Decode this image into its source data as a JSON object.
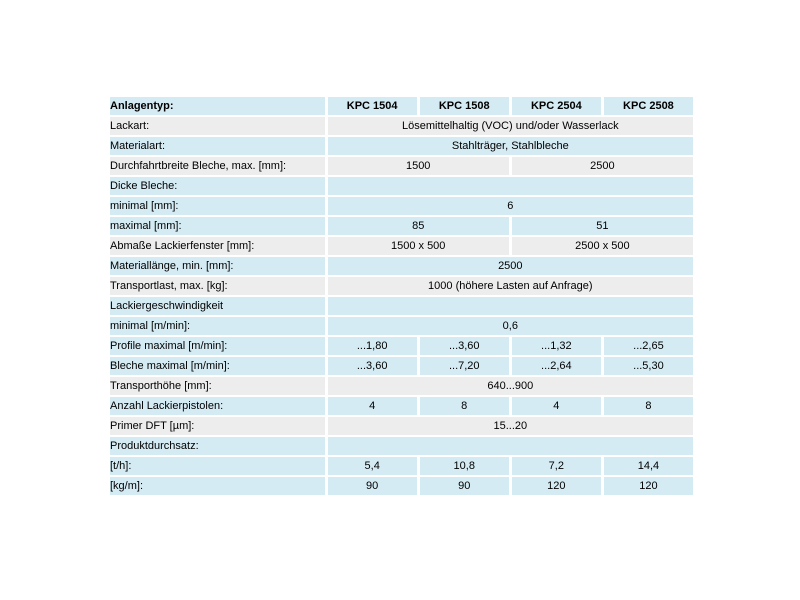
{
  "page": {
    "background": "#ffffff"
  },
  "table": {
    "colors": {
      "row_blue": "#d5ebf3",
      "row_gray": "#ededed",
      "text": "#000000",
      "separator": "#ffffff"
    },
    "header": {
      "label": "Anlagentyp:",
      "columns": [
        "KPC 1504",
        "KPC 1508",
        "KPC 2504",
        "KPC 2508"
      ]
    },
    "rows": [
      {
        "label": "Lackart:",
        "shade": "gray",
        "cells": [
          {
            "text": "Lösemittelhaltig (VOC) und/oder Wasserlack",
            "span": 4
          }
        ]
      },
      {
        "label": "Materialart:",
        "shade": "blue",
        "cells": [
          {
            "text": "Stahlträger, Stahlbleche",
            "span": 4
          }
        ]
      },
      {
        "label": "Durchfahrtbreite Bleche, max. [mm]:",
        "shade": "gray",
        "cells": [
          {
            "text": "1500",
            "span": 2
          },
          {
            "text": "2500",
            "span": 2
          }
        ]
      },
      {
        "label": "Dicke Bleche:",
        "shade": "blue",
        "cells": [
          {
            "text": "",
            "span": 4
          }
        ]
      },
      {
        "label": "minimal [mm]:",
        "shade": "blue",
        "cells": [
          {
            "text": "6",
            "span": 4
          }
        ]
      },
      {
        "label": "maximal [mm]:",
        "shade": "blue",
        "cells": [
          {
            "text": "85",
            "span": 2
          },
          {
            "text": "51",
            "span": 2
          }
        ]
      },
      {
        "label": "Abmaße Lackierfenster [mm]:",
        "shade": "gray",
        "cells": [
          {
            "text": "1500 x 500",
            "span": 2
          },
          {
            "text": "2500 x 500",
            "span": 2
          }
        ]
      },
      {
        "label": "Materiallänge, min. [mm]:",
        "shade": "blue",
        "cells": [
          {
            "text": "2500",
            "span": 4
          }
        ]
      },
      {
        "label": "Transportlast, max. [kg]:",
        "shade": "gray",
        "cells": [
          {
            "text": "1000 (höhere Lasten auf Anfrage)",
            "span": 4
          }
        ]
      },
      {
        "label": "Lackiergeschwindigkeit",
        "shade": "blue",
        "cells": [
          {
            "text": "",
            "span": 4
          }
        ]
      },
      {
        "label": "minimal [m/min]:",
        "shade": "blue",
        "cells": [
          {
            "text": "0,6",
            "span": 4
          }
        ]
      },
      {
        "label": "Profile maximal [m/min]:",
        "shade": "blue",
        "cells": [
          {
            "text": "...1,80",
            "span": 1
          },
          {
            "text": "...3,60",
            "span": 1
          },
          {
            "text": "...1,32",
            "span": 1
          },
          {
            "text": "...2,65",
            "span": 1
          }
        ]
      },
      {
        "label": "Bleche maximal [m/min]:",
        "shade": "blue",
        "cells": [
          {
            "text": "...3,60",
            "span": 1
          },
          {
            "text": "...7,20",
            "span": 1
          },
          {
            "text": "...2,64",
            "span": 1
          },
          {
            "text": "...5,30",
            "span": 1
          }
        ]
      },
      {
        "label": "Transporthöhe [mm]:",
        "shade": "gray",
        "cells": [
          {
            "text": "640...900",
            "span": 4
          }
        ]
      },
      {
        "label": "Anzahl Lackierpistolen:",
        "shade": "blue",
        "cells": [
          {
            "text": "4",
            "span": 1
          },
          {
            "text": "8",
            "span": 1
          },
          {
            "text": "4",
            "span": 1
          },
          {
            "text": "8",
            "span": 1
          }
        ]
      },
      {
        "label": "Primer DFT [µm]:",
        "shade": "gray",
        "cells": [
          {
            "text": "15...20",
            "span": 4
          }
        ]
      },
      {
        "label": "Produktdurchsatz:",
        "shade": "blue",
        "cells": [
          {
            "text": "",
            "span": 4
          }
        ]
      },
      {
        "label": "[t/h]:",
        "shade": "blue",
        "cells": [
          {
            "text": "5,4",
            "span": 1
          },
          {
            "text": "10,8",
            "span": 1
          },
          {
            "text": "7,2",
            "span": 1
          },
          {
            "text": "14,4",
            "span": 1
          }
        ]
      },
      {
        "label": "[kg/m]:",
        "shade": "blue",
        "cells": [
          {
            "text": "90",
            "span": 1
          },
          {
            "text": "90",
            "span": 1
          },
          {
            "text": "120",
            "span": 1
          },
          {
            "text": "120",
            "span": 1
          }
        ]
      }
    ]
  }
}
